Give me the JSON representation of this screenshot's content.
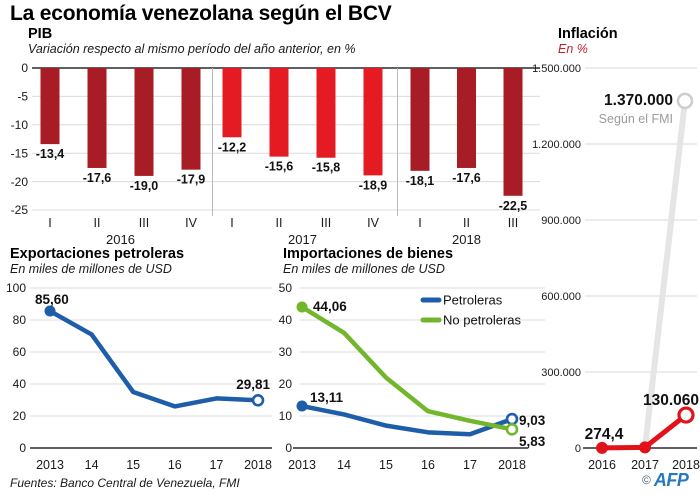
{
  "title": "La economía venezolana según el BCV",
  "source_note": "Fuentes: Banco Central de Venezuela, FMI",
  "credit": {
    "copyright_symbol": "©",
    "agency": "AFP"
  },
  "colors": {
    "dark_red": "#a81c25",
    "bright_red": "#e41b23",
    "blue": "#1d5da9",
    "green": "#72b62c",
    "inflation_red": "#e2121a",
    "projection_gray": "#e5e5e5",
    "note_gray": "#9b9b9b"
  },
  "chart_data": [
    {
      "id": "pib",
      "type": "bar",
      "title": "PIB",
      "subtitle": "Variación respecto al mismo período del año anterior, en %",
      "ylabel": "Variación en %",
      "ylim": [
        -25,
        0
      ],
      "yticks": [
        0,
        -5,
        -10,
        -15,
        -20,
        -25
      ],
      "grid": true,
      "groups": [
        {
          "year": "2016",
          "color": "#a81c25",
          "quarters": [
            "I",
            "II",
            "III",
            "IV"
          ],
          "values": [
            -13.4,
            -17.6,
            -19.0,
            -17.9
          ],
          "labels": [
            "-13,4",
            "-17,6",
            "-19,0",
            "-17,9"
          ]
        },
        {
          "year": "2017",
          "color": "#e41b23",
          "quarters": [
            "I",
            "II",
            "III",
            "IV"
          ],
          "values": [
            -12.2,
            -15.6,
            -15.8,
            -18.9
          ],
          "labels": [
            "-12,2",
            "-15,6",
            "-15,8",
            "-18,9"
          ]
        },
        {
          "year": "2018",
          "color": "#a81c25",
          "quarters": [
            "I",
            "II",
            "III"
          ],
          "values": [
            -18.1,
            -17.6,
            -22.5
          ],
          "labels": [
            "-18,1",
            "-17,6",
            "-22,5"
          ]
        }
      ]
    },
    {
      "id": "exports",
      "type": "line",
      "title": "Exportaciones petroleras",
      "subtitle": "En miles de millones de USD",
      "ylim": [
        0,
        100
      ],
      "yticks": [
        100,
        80,
        60,
        40,
        20,
        0
      ],
      "x": [
        "2013",
        "14",
        "15",
        "16",
        "17",
        "2018"
      ],
      "series": [
        {
          "name": "Exportaciones petroleras",
          "color": "#1d5da9",
          "values": [
            85.6,
            71,
            35,
            26,
            31,
            29.81
          ],
          "first_label": "85,60",
          "last_label": "29,81"
        }
      ]
    },
    {
      "id": "imports",
      "type": "line",
      "title": "Importaciones de bienes",
      "subtitle": "En miles de millones de USD",
      "ylim": [
        0,
        50
      ],
      "yticks": [
        50,
        40,
        30,
        20,
        10,
        0
      ],
      "x": [
        "2013",
        "14",
        "15",
        "16",
        "17",
        "2018"
      ],
      "legend": [
        {
          "label": "Petroleras",
          "color": "#1d5da9"
        },
        {
          "label": "No petroleras",
          "color": "#72b62c"
        }
      ],
      "series": [
        {
          "name": "Petroleras",
          "color": "#1d5da9",
          "values": [
            13.11,
            10.5,
            7,
            4.9,
            4.3,
            9.03
          ],
          "first_label": "13,11",
          "last_label": "9,03"
        },
        {
          "name": "No petroleras",
          "color": "#72b62c",
          "values": [
            44.06,
            36,
            22,
            11.5,
            8.5,
            5.83
          ],
          "first_label": "44,06",
          "last_label": "5,83"
        }
      ]
    },
    {
      "id": "inflation",
      "type": "line",
      "title": "Inflación",
      "subtitle": "En %",
      "ylim": [
        0,
        1500000
      ],
      "yticks": [
        {
          "value": 1500000,
          "label": "1.500.000"
        },
        {
          "value": 1200000,
          "label": "1.200.000"
        },
        {
          "value": 900000,
          "label": "900.000"
        },
        {
          "value": 600000,
          "label": "600.000"
        },
        {
          "value": 300000,
          "label": "300.000"
        },
        {
          "value": 0,
          "label": "0"
        }
      ],
      "x": [
        "2016",
        "2017",
        "2018"
      ],
      "series": [
        {
          "name": "BCV",
          "color": "#e2121a",
          "values": [
            274.4,
            2600,
            130060
          ],
          "first_label": "274,4",
          "last_label": "130.060"
        }
      ],
      "projection": {
        "name": "FMI",
        "color": "#e5e5e5",
        "from_year": "2017",
        "to_year": "2018",
        "value": 1370000,
        "label": "1.370.000",
        "note": "Según el FMI"
      }
    }
  ]
}
